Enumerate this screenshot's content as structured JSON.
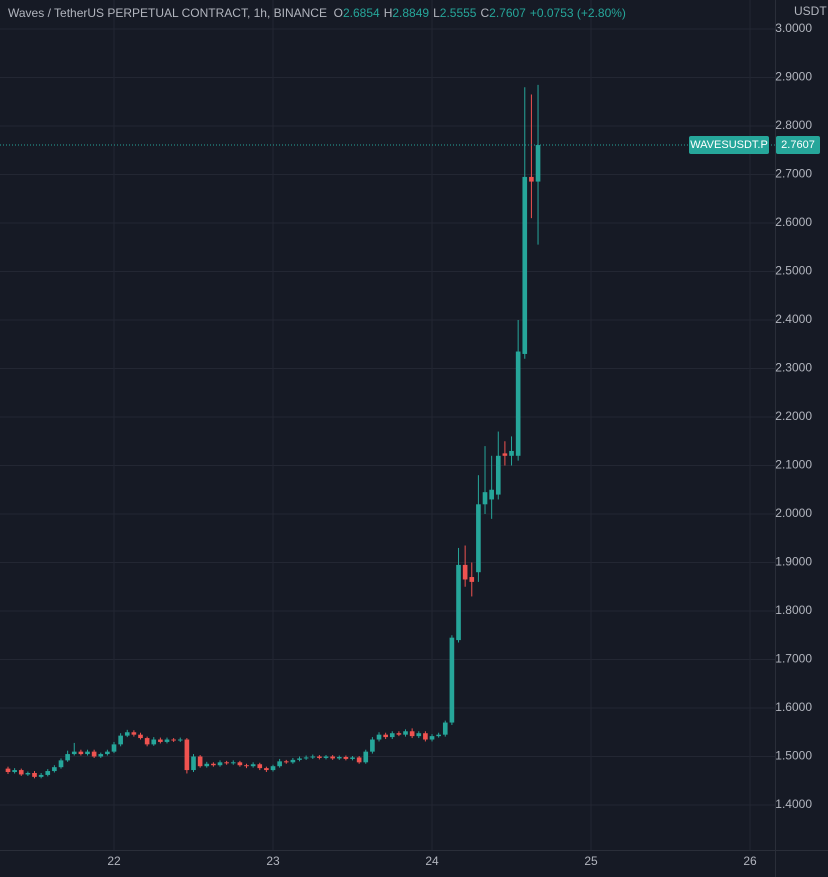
{
  "chart_data": {
    "type": "candlestick",
    "title": "Waves / TetherUS PERPETUAL CONTRACT, 1h, BINANCE",
    "header_labels": [
      "O",
      "H",
      "L",
      "C"
    ],
    "change": "+0.0753 (+2.80%)",
    "currency": "USDT",
    "symbol": "WAVESUSDT.P",
    "up_color": "#26a69a",
    "down_color": "#ef5350",
    "grid": true,
    "x": [
      21.3333,
      21.375,
      21.4167,
      21.4583,
      21.5,
      21.5417,
      21.5833,
      21.625,
      21.6667,
      21.7083,
      21.75,
      21.7917,
      21.8333,
      21.875,
      21.9167,
      21.9583,
      22,
      22.0417,
      22.0833,
      22.125,
      22.1667,
      22.2083,
      22.25,
      22.2917,
      22.3333,
      22.375,
      22.4167,
      22.4583,
      22.5,
      22.5417,
      22.5833,
      22.625,
      22.6667,
      22.7083,
      22.75,
      22.7917,
      22.8333,
      22.875,
      22.9167,
      22.9583,
      23,
      23.0417,
      23.0833,
      23.125,
      23.1667,
      23.2083,
      23.25,
      23.2917,
      23.3333,
      23.375,
      23.4167,
      23.4583,
      23.5,
      23.5417,
      23.5833,
      23.625,
      23.6667,
      23.7083,
      23.75,
      23.7917,
      23.8333,
      23.875,
      23.9167,
      23.9583,
      24,
      24.0417,
      24.0833,
      24.125,
      24.1667,
      24.2083,
      24.25,
      24.2917,
      24.3333,
      24.375,
      24.4167,
      24.4583,
      24.5,
      24.5417,
      24.5833,
      24.625,
      24.6667
    ],
    "open": [
      1.475,
      1.468,
      1.472,
      1.463,
      1.466,
      1.458,
      1.462,
      1.47,
      1.478,
      1.492,
      1.505,
      1.51,
      1.505,
      1.51,
      1.5,
      1.505,
      1.51,
      1.525,
      1.543,
      1.55,
      1.545,
      1.538,
      1.525,
      1.535,
      1.53,
      1.535,
      1.533,
      1.535,
      1.472,
      1.5,
      1.48,
      1.485,
      1.482,
      1.488,
      1.486,
      1.488,
      1.482,
      1.48,
      1.484,
      1.476,
      1.472,
      1.48,
      1.49,
      1.488,
      1.493,
      1.496,
      1.498,
      1.5,
      1.497,
      1.5,
      1.496,
      1.499,
      1.495,
      1.498,
      1.488,
      1.51,
      1.535,
      1.545,
      1.54,
      1.548,
      1.545,
      1.552,
      1.542,
      1.548,
      1.535,
      1.542,
      1.545,
      1.57,
      1.74,
      1.895,
      1.87,
      1.88,
      2.02,
      2.03,
      2.04,
      2.125,
      2.12,
      2.12,
      2.33,
      2.695,
      2.6854
    ],
    "high": [
      1.479,
      1.476,
      1.475,
      1.469,
      1.47,
      1.466,
      1.474,
      1.482,
      1.496,
      1.512,
      1.528,
      1.514,
      1.514,
      1.514,
      1.508,
      1.514,
      1.53,
      1.548,
      1.555,
      1.554,
      1.549,
      1.541,
      1.54,
      1.539,
      1.539,
      1.538,
      1.539,
      1.538,
      1.505,
      1.503,
      1.489,
      1.488,
      1.492,
      1.491,
      1.492,
      1.491,
      1.485,
      1.488,
      1.487,
      1.479,
      1.483,
      1.495,
      1.493,
      1.497,
      1.5,
      1.502,
      1.504,
      1.503,
      1.503,
      1.503,
      1.502,
      1.502,
      1.501,
      1.501,
      1.514,
      1.54,
      1.55,
      1.549,
      1.552,
      1.552,
      1.556,
      1.558,
      1.552,
      1.552,
      1.546,
      1.549,
      1.574,
      1.75,
      1.93,
      1.935,
      1.9,
      2.08,
      2.14,
      2.12,
      2.17,
      2.15,
      2.16,
      2.4,
      2.88,
      2.865,
      2.8849
    ],
    "low": [
      1.464,
      1.465,
      1.46,
      1.46,
      1.455,
      1.455,
      1.459,
      1.467,
      1.475,
      1.489,
      1.502,
      1.502,
      1.502,
      1.497,
      1.497,
      1.502,
      1.507,
      1.521,
      1.54,
      1.541,
      1.535,
      1.521,
      1.522,
      1.527,
      1.527,
      1.53,
      1.53,
      1.465,
      1.468,
      1.477,
      1.477,
      1.479,
      1.479,
      1.483,
      1.483,
      1.479,
      1.476,
      1.477,
      1.472,
      1.468,
      1.469,
      1.477,
      1.485,
      1.485,
      1.49,
      1.493,
      1.495,
      1.494,
      1.494,
      1.493,
      1.493,
      1.492,
      1.492,
      1.485,
      1.485,
      1.506,
      1.531,
      1.536,
      1.536,
      1.542,
      1.541,
      1.538,
      1.538,
      1.531,
      1.531,
      1.539,
      1.541,
      1.565,
      1.735,
      1.85,
      1.83,
      1.86,
      2.0,
      1.99,
      2.03,
      2.1,
      2.1,
      2.11,
      2.32,
      2.61,
      2.5555
    ],
    "close": [
      1.468,
      1.472,
      1.463,
      1.466,
      1.458,
      1.462,
      1.47,
      1.478,
      1.492,
      1.505,
      1.51,
      1.505,
      1.51,
      1.5,
      1.505,
      1.51,
      1.525,
      1.543,
      1.55,
      1.545,
      1.538,
      1.525,
      1.535,
      1.53,
      1.535,
      1.533,
      1.535,
      1.472,
      1.5,
      1.48,
      1.485,
      1.482,
      1.488,
      1.486,
      1.488,
      1.482,
      1.48,
      1.484,
      1.476,
      1.472,
      1.48,
      1.49,
      1.488,
      1.493,
      1.496,
      1.498,
      1.5,
      1.497,
      1.5,
      1.496,
      1.499,
      1.495,
      1.498,
      1.488,
      1.51,
      1.535,
      1.545,
      1.54,
      1.548,
      1.545,
      1.552,
      1.542,
      1.548,
      1.535,
      1.542,
      1.545,
      1.57,
      1.745,
      1.895,
      1.865,
      1.86,
      2.02,
      2.045,
      2.05,
      2.12,
      2.12,
      2.13,
      2.335,
      2.695,
      2.6854,
      2.7607
    ],
    "xlim": [
      21.283,
      26.157
    ],
    "xticks": [
      22,
      23,
      24,
      25,
      26
    ],
    "ylim": [
      1.3072,
      3.0598
    ],
    "yticks": [
      {
        "value": 1.4,
        "label": "1.4000"
      },
      {
        "value": 1.5,
        "label": "1.5000"
      },
      {
        "value": 1.6,
        "label": "1.6000"
      },
      {
        "value": 1.7,
        "label": "1.7000"
      },
      {
        "value": 1.8,
        "label": "1.8000"
      },
      {
        "value": 1.9,
        "label": "1.9000"
      },
      {
        "value": 2.0,
        "label": "2.0000"
      },
      {
        "value": 2.1,
        "label": "2.1000"
      },
      {
        "value": 2.2,
        "label": "2.2000"
      },
      {
        "value": 2.3,
        "label": "2.3000"
      },
      {
        "value": 2.4,
        "label": "2.4000"
      },
      {
        "value": 2.5,
        "label": "2.5000"
      },
      {
        "value": 2.6,
        "label": "2.6000"
      },
      {
        "value": 2.7,
        "label": "2.7000"
      },
      {
        "value": 2.8,
        "label": "2.8000"
      },
      {
        "value": 2.9,
        "label": "2.9000"
      },
      {
        "value": 3.0,
        "label": "3.0000"
      }
    ]
  }
}
